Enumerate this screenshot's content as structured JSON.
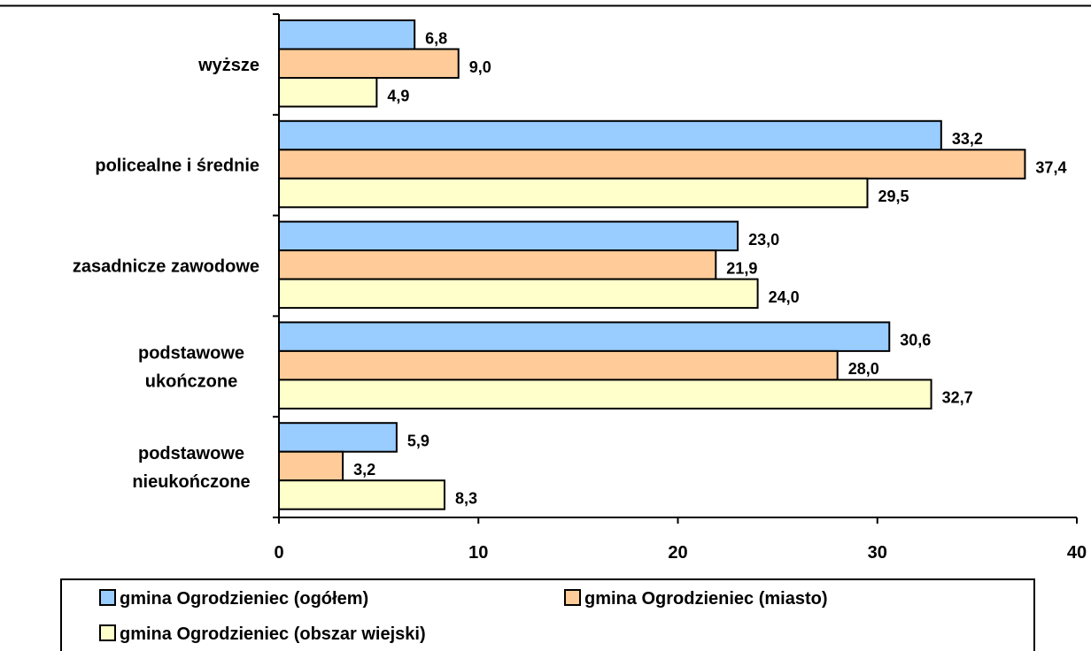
{
  "chart_data": {
    "type": "bar",
    "orientation": "horizontal",
    "categories": [
      "wyższe",
      "policealne i średnie",
      "zasadnicze zawodowe",
      "podstawowe ukończone",
      "podstawowe nieukończone"
    ],
    "series": [
      {
        "name": "gmina Ogrodzieniec (ogółem)",
        "color": "#99ccff",
        "values": [
          6.8,
          33.2,
          23.0,
          30.6,
          5.9
        ],
        "labels": [
          "6,8",
          "33,2",
          "23,0",
          "30,6",
          "5,9"
        ]
      },
      {
        "name": "gmina Ogrodzieniec (miasto)",
        "color": "#ffcc99",
        "values": [
          9.0,
          37.4,
          21.9,
          28.0,
          3.2
        ],
        "labels": [
          "9,0",
          "37,4",
          "21,9",
          "28,0",
          "3,2"
        ]
      },
      {
        "name": "gmina Ogrodzieniec (obszar wiejski)",
        "color": "#ffffcc",
        "values": [
          4.9,
          29.5,
          24.0,
          32.7,
          8.3
        ],
        "labels": [
          "4,9",
          "29,5",
          "24,0",
          "32,7",
          "8,3"
        ]
      }
    ],
    "xlim": [
      0,
      40
    ],
    "xticks": [
      0,
      10,
      20,
      30,
      40
    ],
    "xtick_labels": [
      "0",
      "10",
      "20",
      "30",
      "40"
    ],
    "title": "",
    "xlabel": "",
    "ylabel": "",
    "grid": false,
    "legend_position": "bottom"
  }
}
